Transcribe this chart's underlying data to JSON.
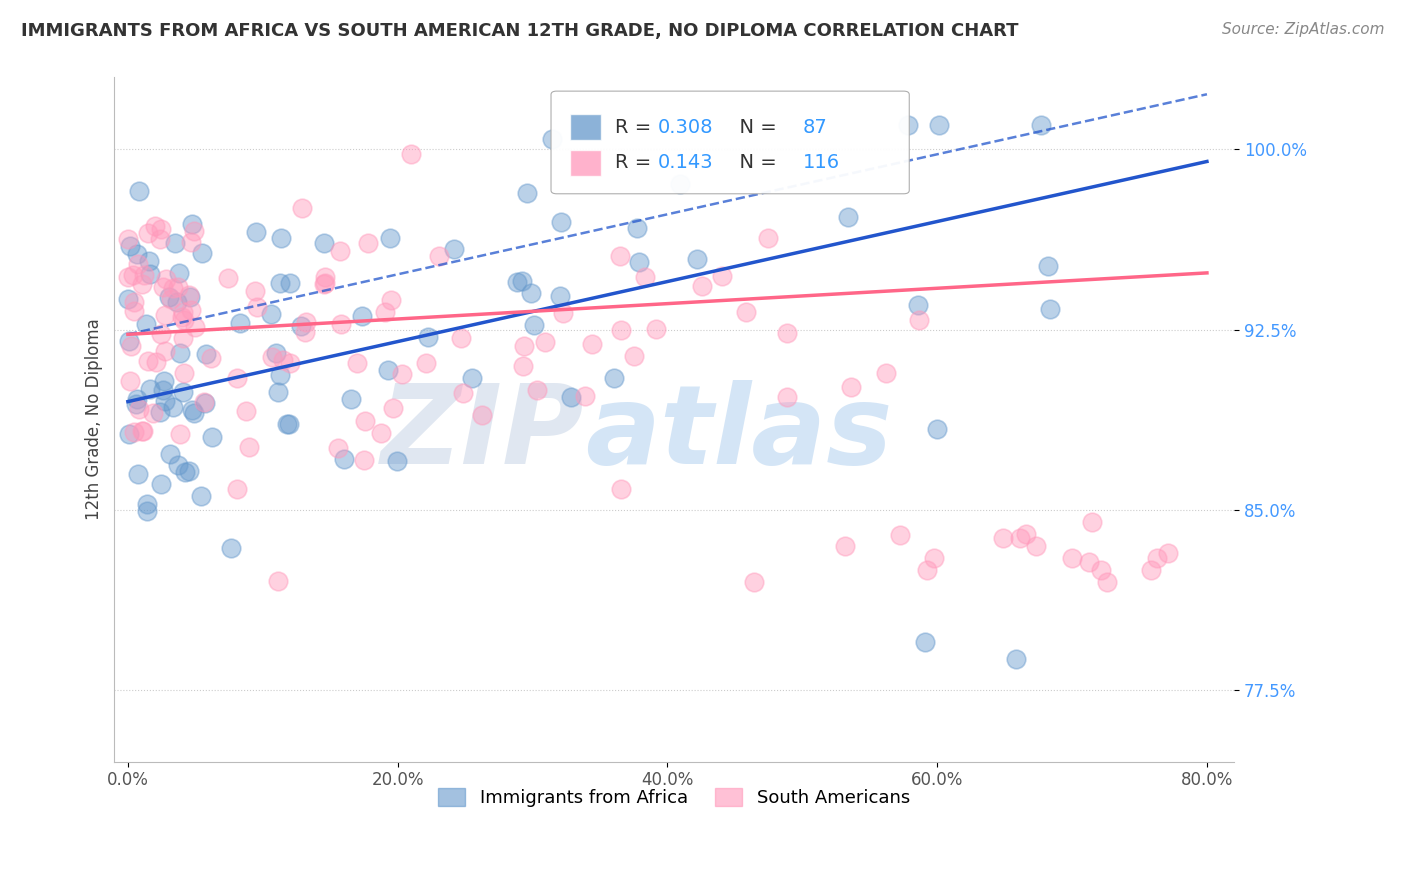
{
  "title": "IMMIGRANTS FROM AFRICA VS SOUTH AMERICAN 12TH GRADE, NO DIPLOMA CORRELATION CHART",
  "source": "Source: ZipAtlas.com",
  "ylabel": "12th Grade, No Diploma",
  "x_tick_labels": [
    "0.0%",
    "20.0%",
    "40.0%",
    "60.0%",
    "80.0%"
  ],
  "x_tick_values": [
    0.0,
    20.0,
    40.0,
    60.0,
    80.0
  ],
  "y_tick_labels": [
    "77.5%",
    "85.0%",
    "92.5%",
    "100.0%"
  ],
  "y_tick_values": [
    77.5,
    85.0,
    92.5,
    100.0
  ],
  "xlim": [
    -1,
    82
  ],
  "ylim": [
    74.5,
    103.0
  ],
  "legend_label_africa": "Immigrants from Africa",
  "legend_label_south": "South Americans",
  "R_africa": "0.308",
  "N_africa": "87",
  "R_south": "0.143",
  "N_south": "116",
  "africa_color": "#6699cc",
  "south_color": "#ff99bb",
  "africa_line_color": "#2255cc",
  "south_line_color": "#ff6688",
  "watermark_zip": "ZIP",
  "watermark_atlas": "atlas",
  "africa_seed": 12,
  "south_seed": 99,
  "title_fontsize": 13,
  "source_fontsize": 11,
  "tick_fontsize": 12,
  "legend_fontsize": 14
}
